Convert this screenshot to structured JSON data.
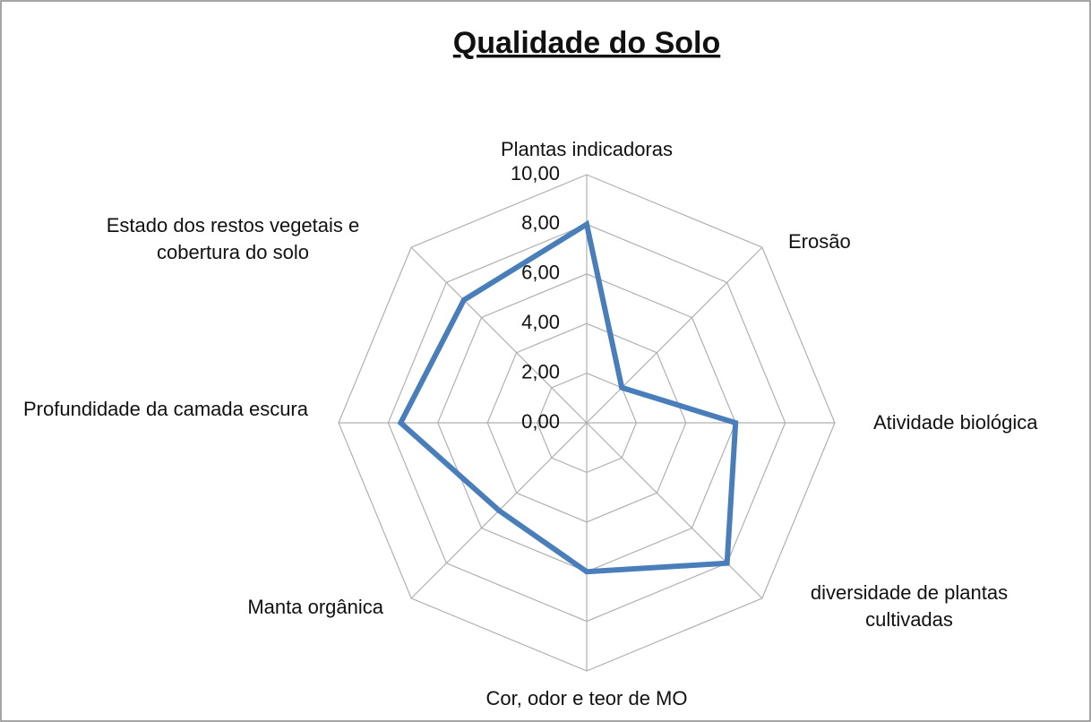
{
  "chart_data": {
    "type": "radar",
    "title": "Qualidade do Solo",
    "categories": [
      "Plantas indicadoras",
      "Erosão",
      "Atividade biológica",
      "diversidade de plantas cultivadas",
      "Cor, odor e teor de MO",
      "Manta orgânica",
      "Profundidade da camada escura",
      "Estado dos restos vegetais e cobertura do solo"
    ],
    "series": [
      {
        "color": "#4a7ebb",
        "values": [
          8,
          2,
          6,
          8,
          6,
          5,
          7.5,
          7
        ]
      }
    ],
    "ylim": [
      0,
      10
    ],
    "yticks": [
      {
        "value": 0,
        "label": "0,00"
      },
      {
        "value": 2,
        "label": "2,00"
      },
      {
        "value": 4,
        "label": "4,00"
      },
      {
        "value": 6,
        "label": "6,00"
      },
      {
        "value": 8,
        "label": "8,00"
      },
      {
        "value": 10,
        "label": "10,00"
      }
    ],
    "grid": true
  }
}
